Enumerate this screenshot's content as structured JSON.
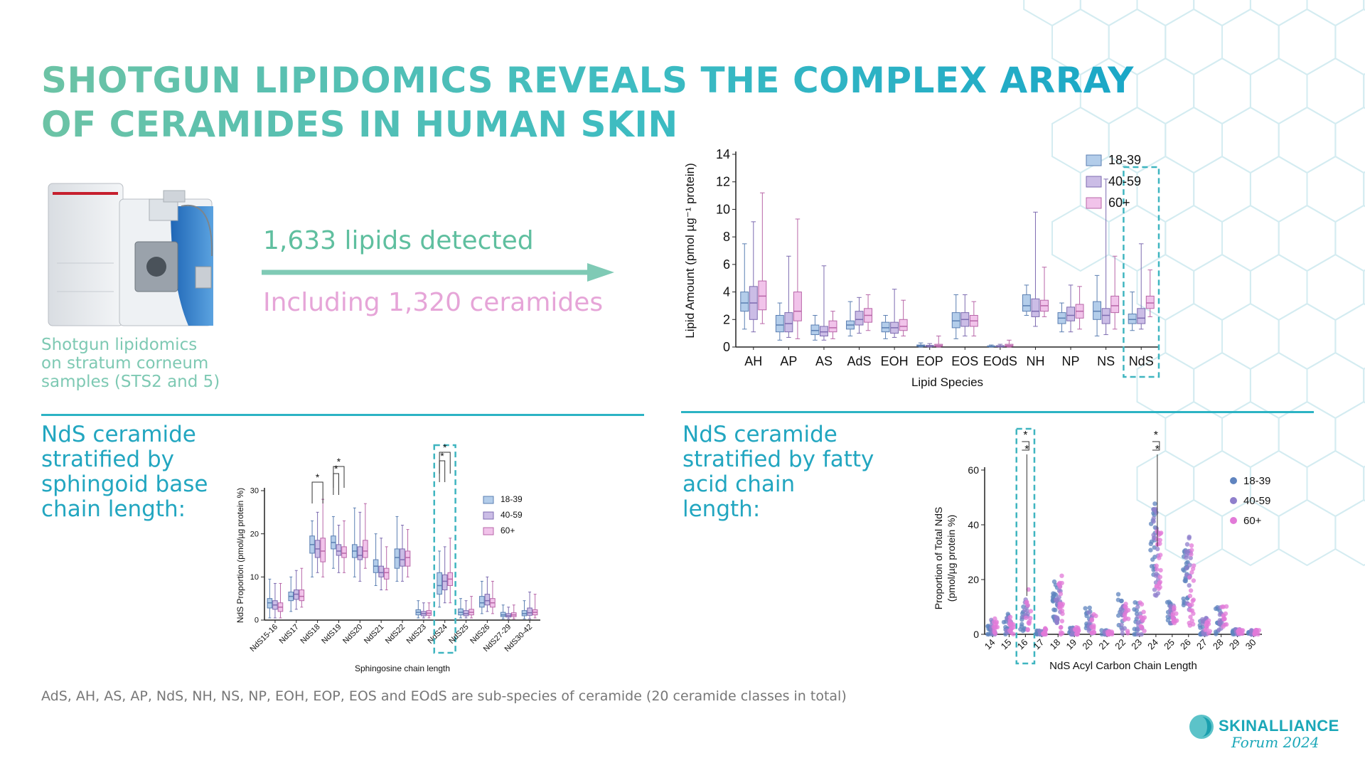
{
  "title": {
    "line1": "SHOTGUN LIPIDOMICS REVEALS THE COMPLEX ARRAY",
    "line2": "OF CERAMIDES IN HUMAN SKIN"
  },
  "caption": {
    "line1": "Shotgun lipidomics",
    "line2": "on stratum corneum",
    "line3": "samples (STS2 and 5)"
  },
  "stats": {
    "lipids": "1,633 lipids detected",
    "ceramides": "Including 1,320 ceramides"
  },
  "section_left": {
    "line1": "NdS ceramide",
    "line2": "stratified by",
    "line3": "sphingoid base",
    "line4": "chain length:"
  },
  "section_right": {
    "line1": "NdS ceramide",
    "line2": "stratified by fatty",
    "line3": "acid chain",
    "line4": "length:"
  },
  "footnote": "AdS, AH, AS, AP, NdS, NH, NS, NP, EOH, EOP, EOS and EOdS are sub-species of ceramide (20 ceramide classes in total)",
  "logo": {
    "name": "SKINALLIANCE",
    "sub": "Forum 2024"
  },
  "colors": {
    "accent": "#2cb3c4",
    "teal_text": "#22a6c0",
    "series_18_39": "#b3cdea",
    "series_40_59": "#cbbde6",
    "series_60": "#f1c3ea"
  },
  "chart_data": [
    {
      "type": "boxplot",
      "xlabel": "Lipid Species",
      "ylabel": "Lipid Amount (pmol µg⁻¹ protein)",
      "ylim": [
        0,
        14
      ],
      "yticks": [
        0,
        2,
        4,
        6,
        8,
        10,
        12,
        14
      ],
      "categories": [
        "AH",
        "AP",
        "AS",
        "AdS",
        "EOH",
        "EOP",
        "EOS",
        "EOdS",
        "NH",
        "NP",
        "NS",
        "NdS"
      ],
      "highlight": "NdS",
      "legend_position": "top-right",
      "series": [
        {
          "name": "18-39",
          "color": "#b3cdea",
          "stroke": "#5b7fb2",
          "boxes": [
            [
              1.3,
              2.6,
              3.2,
              4.0,
              7.5
            ],
            [
              0.5,
              1.1,
              1.6,
              2.3,
              3.2
            ],
            [
              0.5,
              0.9,
              1.2,
              1.6,
              2.3
            ],
            [
              0.8,
              1.3,
              1.6,
              1.9,
              3.3
            ],
            [
              0.6,
              1.1,
              1.4,
              1.8,
              2.3
            ],
            [
              0,
              0.05,
              0.1,
              0.15,
              0.3
            ],
            [
              0.6,
              1.4,
              1.9,
              2.5,
              3.8
            ],
            [
              0,
              0.03,
              0.05,
              0.08,
              0.15
            ],
            [
              2.3,
              2.6,
              3.0,
              3.8,
              4.5
            ],
            [
              1.1,
              1.7,
              2.1,
              2.5,
              3.2
            ],
            [
              0.8,
              2.0,
              2.6,
              3.3,
              5.2
            ],
            [
              1.2,
              1.7,
              2.0,
              2.4,
              4.0
            ]
          ]
        },
        {
          "name": "40-59",
          "color": "#cbbde6",
          "stroke": "#7d6bb0",
          "boxes": [
            [
              1.1,
              2.0,
              3.2,
              4.4,
              9.1
            ],
            [
              0.7,
              1.1,
              1.7,
              2.5,
              6.6
            ],
            [
              0.5,
              0.8,
              1.1,
              1.5,
              5.9
            ],
            [
              1.0,
              1.6,
              2.0,
              2.6,
              3.6
            ],
            [
              0.7,
              1.0,
              1.4,
              1.8,
              4.2
            ],
            [
              0,
              0.04,
              0.08,
              0.12,
              0.25
            ],
            [
              0.8,
              1.5,
              2.0,
              2.5,
              3.8
            ],
            [
              0,
              0.03,
              0.06,
              0.1,
              0.2
            ],
            [
              1.5,
              2.2,
              2.6,
              3.5,
              9.8
            ],
            [
              1.1,
              1.9,
              2.3,
              2.9,
              4.5
            ],
            [
              0.9,
              1.7,
              2.3,
              2.8,
              12.2
            ],
            [
              1.3,
              1.7,
              2.1,
              2.8,
              7.5
            ]
          ]
        },
        {
          "name": "60+",
          "color": "#f1c3ea",
          "stroke": "#b866a8",
          "boxes": [
            [
              1.7,
              2.7,
              3.7,
              4.8,
              11.2
            ],
            [
              0.6,
              1.9,
              2.6,
              4.0,
              9.3
            ],
            [
              0.6,
              1.1,
              1.4,
              1.9,
              2.6
            ],
            [
              1.2,
              1.8,
              2.3,
              2.8,
              3.8
            ],
            [
              0.8,
              1.2,
              1.5,
              2.0,
              3.4
            ],
            [
              0,
              0.05,
              0.1,
              0.2,
              0.8
            ],
            [
              0.8,
              1.5,
              1.9,
              2.3,
              3.3
            ],
            [
              0,
              0.05,
              0.1,
              0.2,
              0.5
            ],
            [
              2.2,
              2.6,
              3.0,
              3.4,
              5.8
            ],
            [
              1.3,
              2.1,
              2.6,
              3.1,
              4.4
            ],
            [
              1.3,
              2.5,
              3.0,
              3.7,
              6.6
            ],
            [
              2.2,
              2.8,
              3.2,
              3.7,
              5.6
            ]
          ]
        }
      ]
    },
    {
      "type": "boxplot",
      "xlabel": "Sphingosine chain length",
      "ylabel": "NdS Proportion (pmol/µg protein %)",
      "ylim": [
        0,
        30
      ],
      "yticks": [
        0,
        10,
        20,
        30
      ],
      "categories": [
        "NdS15-16",
        "NdS17",
        "NdS18",
        "NdS19",
        "NdS20",
        "NdS21",
        "NdS22",
        "NdS23",
        "NdS24",
        "NdS25",
        "NdS26",
        "NdS27-29",
        "NdS30-42"
      ],
      "highlight": "NdS24",
      "legend_position": "top-right",
      "significance": [
        {
          "label": "*",
          "between": [
            "18-39",
            "60+"
          ],
          "category": "NdS18"
        },
        {
          "label": "*",
          "between": [
            "18-39",
            "40-59"
          ],
          "category": "NdS19"
        },
        {
          "label": "*",
          "between": [
            "18-39",
            "60+"
          ],
          "category": "NdS19"
        },
        {
          "label": "*",
          "between": [
            "18-39",
            "40-59"
          ],
          "category": "NdS24"
        },
        {
          "label": "*",
          "between": [
            "18-39",
            "60+"
          ],
          "category": "NdS24"
        }
      ],
      "series": [
        {
          "name": "18-39",
          "color": "#b3cdea",
          "stroke": "#5b7fb2",
          "boxes": [
            [
              0.5,
              2.8,
              4.0,
              5.0,
              9.5
            ],
            [
              2.0,
              4.5,
              5.5,
              6.5,
              10
            ],
            [
              10,
              15.5,
              17.5,
              19.5,
              23
            ],
            [
              12,
              16.5,
              18,
              19.5,
              24
            ],
            [
              10,
              14.5,
              16,
              17.5,
              26
            ],
            [
              8,
              11,
              12.5,
              14,
              20
            ],
            [
              9,
              12,
              14.5,
              16.5,
              24
            ],
            [
              0.5,
              1.2,
              1.8,
              2.4,
              4.5
            ],
            [
              3,
              6,
              8,
              11,
              16
            ],
            [
              0.5,
              1.2,
              1.8,
              2.6,
              5
            ],
            [
              1.5,
              3.0,
              4.0,
              5.5,
              9
            ],
            [
              0.3,
              0.8,
              1.2,
              1.8,
              3.5
            ],
            [
              0.3,
              1.0,
              1.5,
              2.2,
              4.5
            ]
          ]
        },
        {
          "name": "40-59",
          "color": "#cbbde6",
          "stroke": "#7d6bb0",
          "boxes": [
            [
              0.5,
              2.5,
              3.5,
              4.5,
              8.5
            ],
            [
              2.5,
              4.8,
              6.0,
              7.0,
              11.5
            ],
            [
              11,
              14.5,
              16.5,
              18.5,
              25
            ],
            [
              11,
              15,
              16,
              17.5,
              22
            ],
            [
              9,
              14,
              15,
              17,
              25
            ],
            [
              7,
              10,
              11,
              12.5,
              19
            ],
            [
              9,
              12.5,
              14,
              16.5,
              22
            ],
            [
              0.5,
              1.0,
              1.5,
              2.0,
              4.0
            ],
            [
              4,
              7,
              9,
              10.5,
              17
            ],
            [
              0.5,
              1.0,
              1.5,
              2.2,
              4.5
            ],
            [
              2.0,
              3.5,
              4.5,
              6.0,
              10
            ],
            [
              0.3,
              0.7,
              1.0,
              1.5,
              3.0
            ],
            [
              0.3,
              1.1,
              1.7,
              2.8,
              6.5
            ]
          ]
        },
        {
          "name": "60+",
          "color": "#f1c3ea",
          "stroke": "#b866a8",
          "boxes": [
            [
              0.5,
              2.0,
              3.0,
              4.0,
              8.5
            ],
            [
              3.0,
              4.5,
              5.5,
              7.0,
              12
            ],
            [
              10,
              13.5,
              16,
              19,
              28
            ],
            [
              11,
              14.5,
              15.5,
              17,
              23
            ],
            [
              12,
              14.5,
              16,
              18.5,
              27
            ],
            [
              7,
              9.5,
              11,
              12,
              17
            ],
            [
              10,
              12.5,
              14.5,
              16,
              21
            ],
            [
              0.5,
              1.1,
              1.6,
              2.2,
              4.0
            ],
            [
              4,
              8,
              9.5,
              11,
              19
            ],
            [
              0.5,
              1.2,
              1.8,
              2.5,
              5.5
            ],
            [
              1.5,
              3.0,
              4.0,
              5.0,
              9
            ],
            [
              0.3,
              0.8,
              1.2,
              1.7,
              3.5
            ],
            [
              0.5,
              1.2,
              1.8,
              2.4,
              6.0
            ]
          ]
        }
      ]
    },
    {
      "type": "scatter",
      "xlabel": "NdS Acyl Carbon Chain Length",
      "ylabel": "Proportion of Total NdS (pmol/µg protein %)",
      "ylim": [
        0,
        60
      ],
      "yticks": [
        0,
        20,
        40,
        60
      ],
      "categories": [
        "14",
        "15",
        "16",
        "17",
        "18",
        "19",
        "20",
        "21",
        "22",
        "23",
        "24",
        "25",
        "26",
        "27",
        "28",
        "29",
        "30"
      ],
      "highlight": "16",
      "legend_position": "top-right",
      "significance": [
        {
          "label": "*",
          "category": "16"
        },
        {
          "label": "*",
          "category": "16"
        },
        {
          "label": "*",
          "category": "24"
        },
        {
          "label": "*",
          "category": "24"
        }
      ],
      "series": [
        {
          "name": "18-39",
          "color": "#5f84bf",
          "means": [
            2,
            4,
            6,
            0.5,
            13,
            1,
            5,
            0.5,
            8,
            5,
            35,
            8,
            20,
            2,
            5,
            0.8,
            0.5
          ],
          "spread": [
            3,
            4,
            5,
            1,
            8,
            1.5,
            5,
            1,
            7,
            7,
            14,
            4,
            11,
            3,
            5,
            1,
            1
          ]
        },
        {
          "name": "40-59",
          "color": "#8f7fcc",
          "means": [
            2.5,
            3.5,
            7,
            0.5,
            11,
            1,
            4,
            0.5,
            6,
            5,
            30,
            7,
            22,
            3,
            6,
            0.8,
            0.5
          ],
          "spread": [
            3,
            3,
            6,
            1,
            7,
            1.5,
            4,
            1,
            6,
            6,
            16,
            4,
            14,
            3,
            5,
            1,
            1
          ]
        },
        {
          "name": "60+",
          "color": "#e27ad8",
          "means": [
            3,
            4,
            9,
            0.8,
            12,
            1.2,
            4,
            0.6,
            6,
            6,
            27,
            7,
            18,
            3,
            7,
            1,
            0.6
          ],
          "spread": [
            3,
            4,
            8,
            1.5,
            12,
            1.5,
            4,
            1,
            6,
            6,
            12,
            3,
            15,
            3,
            5,
            1,
            1
          ]
        }
      ]
    }
  ]
}
